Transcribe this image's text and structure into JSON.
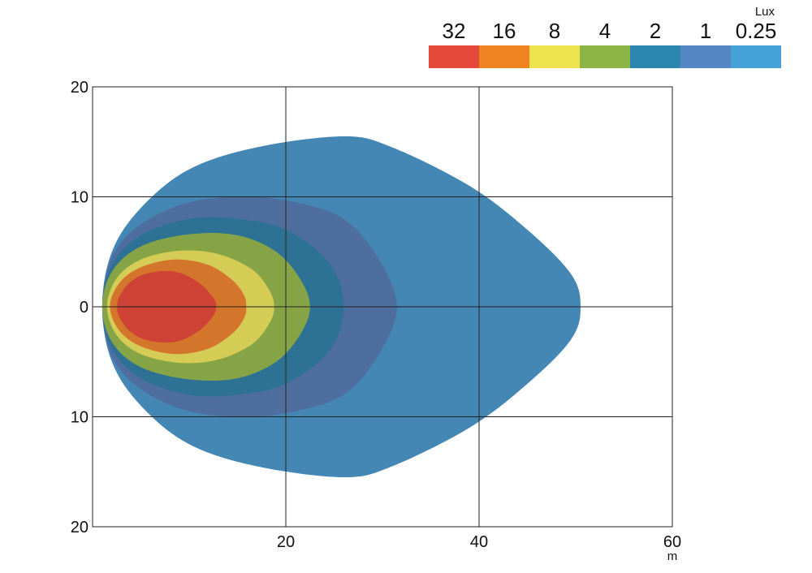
{
  "chart_data": {
    "type": "contour",
    "title": "",
    "unit_label": "Lux",
    "x_unit": "m",
    "xlim": [
      0,
      60
    ],
    "ylim": [
      -20,
      20
    ],
    "x_ticks": [
      "20",
      "40",
      "60"
    ],
    "y_ticks": [
      "20",
      "10",
      "0",
      "10",
      "20"
    ],
    "grid": true,
    "legend_placement": "top-right",
    "levels": [
      {
        "label": "32",
        "color": "#e4483a",
        "fill": "#cf4236"
      },
      {
        "label": "16",
        "color": "#ee8420",
        "fill": "#d3762c"
      },
      {
        "label": "8",
        "color": "#ece34e",
        "fill": "#d4cc55"
      },
      {
        "label": "4",
        "color": "#8db446",
        "fill": "#86a446"
      },
      {
        "label": "2",
        "color": "#2d86ae",
        "fill": "#2d7294"
      },
      {
        "label": "1",
        "color": "#5586c6",
        "fill": "#4f6ea0"
      },
      {
        "label": "0.25",
        "color": "#45a1d8",
        "fill": "#4486b4"
      }
    ],
    "contours": [
      {
        "level": "0.25",
        "points": [
          [
            1,
            0
          ],
          [
            2,
            5
          ],
          [
            5,
            9
          ],
          [
            10,
            12.5
          ],
          [
            17,
            14.5
          ],
          [
            26,
            15.5
          ],
          [
            31,
            14.5
          ],
          [
            39,
            11
          ],
          [
            45,
            7
          ],
          [
            49.5,
            3
          ],
          [
            50.5,
            0
          ],
          [
            49.5,
            -3
          ],
          [
            45,
            -7
          ],
          [
            39,
            -11
          ],
          [
            31,
            -14.5
          ],
          [
            26,
            -15.5
          ],
          [
            17,
            -14.5
          ],
          [
            10,
            -12.5
          ],
          [
            5,
            -9
          ],
          [
            2,
            -5
          ]
        ]
      },
      {
        "level": "1",
        "points": [
          [
            1,
            0
          ],
          [
            2,
            4.5
          ],
          [
            5,
            7.5
          ],
          [
            10,
            9.5
          ],
          [
            16,
            10
          ],
          [
            21,
            9.5
          ],
          [
            26,
            8
          ],
          [
            29.5,
            4.5
          ],
          [
            31.5,
            0
          ],
          [
            29.5,
            -4.5
          ],
          [
            26,
            -8
          ],
          [
            21,
            -9.5
          ],
          [
            16,
            -10
          ],
          [
            10,
            -9.5
          ],
          [
            5,
            -7.5
          ],
          [
            2,
            -4.5
          ]
        ]
      },
      {
        "level": "2",
        "points": [
          [
            1,
            0
          ],
          [
            2,
            3.8
          ],
          [
            5,
            6.5
          ],
          [
            10,
            8
          ],
          [
            15,
            8
          ],
          [
            20,
            7
          ],
          [
            24.5,
            4
          ],
          [
            26,
            0
          ],
          [
            24.5,
            -4
          ],
          [
            20,
            -7
          ],
          [
            15,
            -8
          ],
          [
            10,
            -8
          ],
          [
            5,
            -6.5
          ],
          [
            2,
            -3.8
          ]
        ]
      },
      {
        "level": "4",
        "points": [
          [
            1,
            0
          ],
          [
            2,
            3.2
          ],
          [
            5,
            5.5
          ],
          [
            10,
            6.6
          ],
          [
            15,
            6.5
          ],
          [
            19,
            5
          ],
          [
            21.5,
            2.5
          ],
          [
            22.5,
            0
          ],
          [
            21.5,
            -2.5
          ],
          [
            19,
            -5
          ],
          [
            15,
            -6.5
          ],
          [
            10,
            -6.6
          ],
          [
            5,
            -5.5
          ],
          [
            2,
            -3.2
          ]
        ]
      },
      {
        "level": "8",
        "points": [
          [
            1.5,
            0
          ],
          [
            2.5,
            2.6
          ],
          [
            5,
            4.3
          ],
          [
            9,
            5.1
          ],
          [
            13,
            4.8
          ],
          [
            16.5,
            3.4
          ],
          [
            18.3,
            1.5
          ],
          [
            18.8,
            0
          ],
          [
            18.3,
            -1.5
          ],
          [
            16.5,
            -3.4
          ],
          [
            13,
            -4.8
          ],
          [
            9,
            -5.1
          ],
          [
            5,
            -4.3
          ],
          [
            2.5,
            -2.6
          ]
        ]
      },
      {
        "level": "16",
        "points": [
          [
            1.8,
            0
          ],
          [
            2.8,
            2.2
          ],
          [
            5,
            3.6
          ],
          [
            8.5,
            4.3
          ],
          [
            12,
            3.8
          ],
          [
            14.5,
            2.4
          ],
          [
            15.7,
            1
          ],
          [
            15.9,
            0
          ],
          [
            15.7,
            -1
          ],
          [
            14.5,
            -2.4
          ],
          [
            12,
            -3.8
          ],
          [
            8.5,
            -4.3
          ],
          [
            5,
            -3.6
          ],
          [
            2.8,
            -2.2
          ]
        ]
      },
      {
        "level": "32",
        "points": [
          [
            2.5,
            0
          ],
          [
            3.5,
            1.9
          ],
          [
            5.5,
            3
          ],
          [
            8.5,
            3.2
          ],
          [
            11,
            2.2
          ],
          [
            12.5,
            0.8
          ],
          [
            12.8,
            0
          ],
          [
            12.5,
            -0.8
          ],
          [
            11,
            -2.2
          ],
          [
            8.5,
            -3.2
          ],
          [
            5.5,
            -3
          ],
          [
            3.5,
            -1.9
          ]
        ]
      }
    ]
  }
}
